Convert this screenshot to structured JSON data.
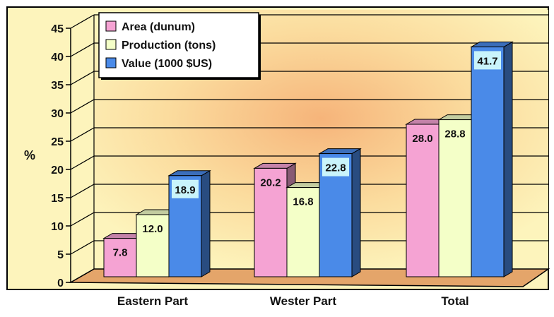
{
  "chart_data": {
    "type": "bar",
    "title": "",
    "xlabel": "",
    "ylabel": "%",
    "ylim": [
      0,
      45
    ],
    "yticks": [
      0,
      5,
      10,
      15,
      20,
      25,
      30,
      35,
      40,
      45
    ],
    "grid": true,
    "legend_position": "top-left",
    "categories": [
      "Eastern Part",
      "Wester Part",
      "Total"
    ],
    "series": [
      {
        "name": "Area (dunum)",
        "values": [
          7.8,
          20.2,
          28.0
        ],
        "labels": [
          "7.8",
          "20.2",
          "28.0"
        ],
        "color": "#f5a3d3"
      },
      {
        "name": "Production (tons)",
        "values": [
          12.0,
          16.8,
          28.8
        ],
        "labels": [
          "12.0",
          "16.8",
          "28.8"
        ],
        "color": "#f4ffc8"
      },
      {
        "name": "Value (1000 $US)",
        "values": [
          18.9,
          22.8,
          41.7
        ],
        "labels": [
          "18.9",
          "22.8",
          "41.7"
        ],
        "color": "#4a8ae8"
      }
    ],
    "colors": {
      "wall": "#fdf4bc",
      "wall_glow": "#f6b47a",
      "floor": "#e4a56a",
      "label_box": "#c9f4fb"
    }
  }
}
